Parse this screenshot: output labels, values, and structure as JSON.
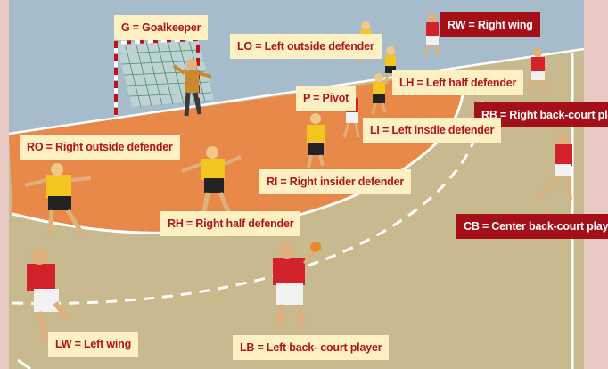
{
  "labels": {
    "goalkeeper": "G = Goalkeeper",
    "left_outside_defender": "LO = Left outside defender",
    "right_wing": "RW = Right wing",
    "left_half_defender": "LH = Left half defender",
    "pivot": "P = Pivot",
    "right_back_court_player": "RB = Right back-court player",
    "left_inside_defender": "LI = Left insdie defender",
    "right_outside_defender": "RO = Right outside defender",
    "right_insider_defender": "RI = Right insider defender",
    "right_half_defender": "RH = Right half defender",
    "center_back_court_player": "CB = Center back-court playrt",
    "left_wing": "LW = Left wing",
    "left_back_court_player": "LB = Left back- court player"
  },
  "colors": {
    "defense_label_bg": "#fdf1c3",
    "defense_label_text": "#b3131b",
    "attack_label_bg": "#a50f17",
    "attack_label_text": "#ffffff",
    "court_floor": "#c9b98e",
    "goal_area": "#e8894a",
    "defender_shirt": "#f3c51f",
    "attacker_shirt": "#d2232a"
  }
}
